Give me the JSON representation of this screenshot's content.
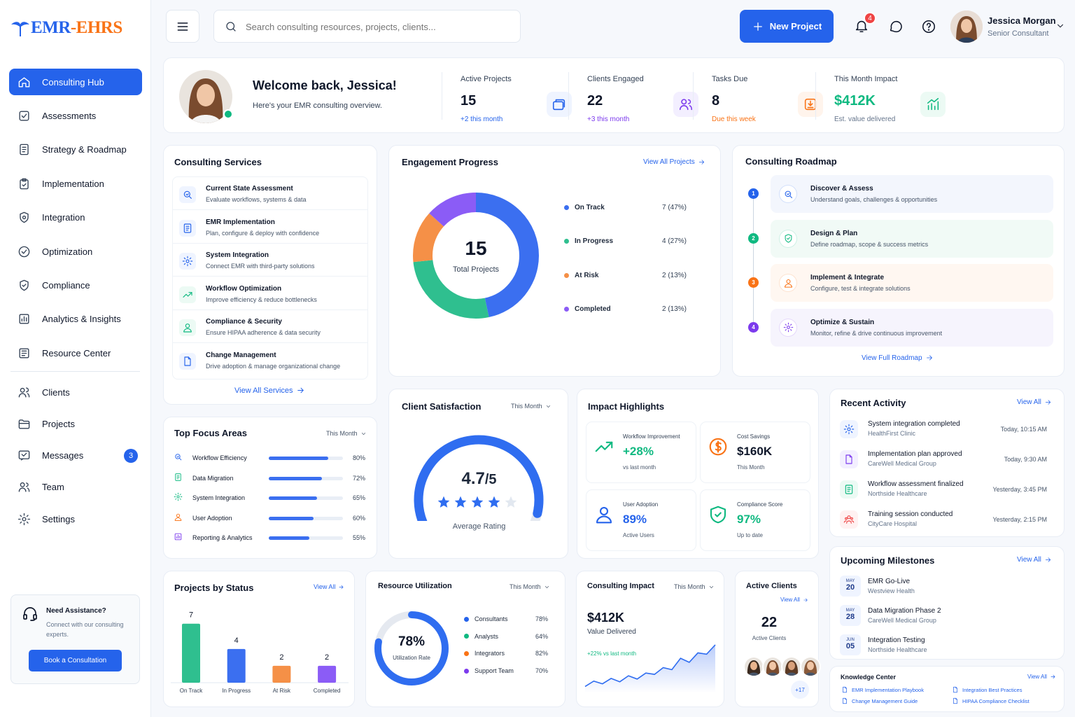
{
  "brand": {
    "logo_text_main": "EMR",
    "logo_text_dash": "-",
    "logo_text_end": "EHRS"
  },
  "search": {
    "placeholder": "Search consulting resources, projects, clients..."
  },
  "header": {
    "new_project": "New Project",
    "notifications": "4",
    "user_name": "Jessica Morgan",
    "user_role": "Senior Consultant"
  },
  "sidebar": {
    "items": [
      {
        "label": "Consulting Hub",
        "icon": "home-icon"
      },
      {
        "label": "Assessments",
        "icon": "checklist-icon"
      },
      {
        "label": "Strategy & Roadmap",
        "icon": "document-icon"
      },
      {
        "label": "Implementation",
        "icon": "clipboard-icon"
      },
      {
        "label": "Integration",
        "icon": "shield-gear-icon"
      },
      {
        "label": "Optimization",
        "icon": "check-circle-icon"
      },
      {
        "label": "Compliance",
        "icon": "shield-check-icon"
      },
      {
        "label": "Analytics & Insights",
        "icon": "chart-icon"
      },
      {
        "label": "Resource Center",
        "icon": "book-icon"
      }
    ],
    "items2": [
      {
        "label": "Clients",
        "icon": "users-icon"
      },
      {
        "label": "Projects",
        "icon": "folder-icon"
      },
      {
        "label": "Messages",
        "icon": "message-icon",
        "badge": "3"
      },
      {
        "label": "Team",
        "icon": "team-icon"
      },
      {
        "label": "Settings",
        "icon": "gear-icon"
      }
    ],
    "help": {
      "title": "Need Assistance?",
      "text1": "Connect with our consulting",
      "text2": "experts.",
      "button": "Book a Consultation"
    }
  },
  "welcome": {
    "title": "Welcome back, Jessica!",
    "subtitle": "Here's your EMR consulting overview."
  },
  "stats": [
    {
      "label": "Active Projects",
      "value": "15",
      "sub": "+2 this month",
      "color": "#2563eb"
    },
    {
      "label": "Clients Engaged",
      "value": "22",
      "sub": "+3 this month",
      "color": "#7c3aed"
    },
    {
      "label": "Tasks Due",
      "value": "8",
      "sub": "Due this week",
      "color": "#f97316"
    },
    {
      "label": "This Month Impact",
      "value": "$412K",
      "sub": "Est. value delivered",
      "color": "#10b981"
    }
  ],
  "services": {
    "title": "Consulting Services",
    "link": "View All Services",
    "items": [
      {
        "title": "Current State Assessment",
        "desc": "Evaluate workflows, systems & data"
      },
      {
        "title": "EMR Implementation",
        "desc": "Plan, configure & deploy with confidence"
      },
      {
        "title": "System Integration",
        "desc": "Connect EMR with third-party solutions"
      },
      {
        "title": "Workflow Optimization",
        "desc": "Improve efficiency & reduce bottlenecks"
      },
      {
        "title": "Compliance & Security",
        "desc": "Ensure HIPAA adherence & data security"
      },
      {
        "title": "Change Management",
        "desc": "Drive adoption & manage organizational change"
      }
    ]
  },
  "engagement": {
    "title": "Engagement Progress",
    "link": "View All Projects",
    "center_value": "15",
    "center_label": "Total Projects"
  },
  "chart_data": [
    {
      "type": "pie",
      "title": "Engagement Progress",
      "categories": [
        "On Track",
        "In Progress",
        "At Risk",
        "Completed"
      ],
      "values": [
        7,
        4,
        2,
        2
      ],
      "labels": [
        "7 (47%)",
        "4 (27%)",
        "2 (13%)",
        "2 (13%)"
      ],
      "colors": [
        "#3b6ff0",
        "#2fbf8f",
        "#f59047",
        "#8b5cf6"
      ]
    },
    {
      "type": "bar",
      "title": "Projects by Status",
      "categories": [
        "On Track",
        "In Progress",
        "At Risk",
        "Completed"
      ],
      "values": [
        7,
        4,
        2,
        2
      ],
      "colors": [
        "#2fbf8f",
        "#3b6ff0",
        "#f59047",
        "#8b5cf6"
      ],
      "ylim": [
        0,
        8
      ]
    },
    {
      "type": "line",
      "title": "Consulting Impact",
      "values": [
        10,
        18,
        14,
        22,
        17,
        26,
        21,
        30,
        28,
        38,
        35,
        52,
        46,
        60,
        58,
        72
      ]
    }
  ],
  "roadmap": {
    "title": "Consulting Roadmap",
    "link": "View Full Roadmap",
    "steps": [
      {
        "n": "1",
        "title": "Discover & Assess",
        "desc": "Understand goals, challenges & opportunities",
        "color": "#2563eb",
        "bg": "#f3f6fd"
      },
      {
        "n": "2",
        "title": "Design & Plan",
        "desc": "Define roadmap, scope & success metrics",
        "color": "#10b981",
        "bg": "#f1faf6"
      },
      {
        "n": "3",
        "title": "Implement & Integrate",
        "desc": "Configure, test & integrate solutions",
        "color": "#f97316",
        "bg": "#fff7f1"
      },
      {
        "n": "4",
        "title": "Optimize & Sustain",
        "desc": "Monitor, refine & drive continuous improvement",
        "color": "#7c3aed",
        "bg": "#f6f4fd"
      }
    ]
  },
  "focus": {
    "title": "Top Focus Areas",
    "period": "This Month",
    "items": [
      {
        "label": "Workflow Efficiency",
        "pct": "80%",
        "value": 80,
        "color": "#2563eb"
      },
      {
        "label": "Data Migration",
        "pct": "72%",
        "value": 72,
        "color": "#10b981"
      },
      {
        "label": "System Integration",
        "pct": "65%",
        "value": 65,
        "color": "#10b981"
      },
      {
        "label": "User Adoption",
        "pct": "60%",
        "value": 60,
        "color": "#f97316"
      },
      {
        "label": "Reporting & Analytics",
        "pct": "55%",
        "value": 55,
        "color": "#7c3aed"
      }
    ]
  },
  "satisfaction": {
    "title": "Client Satisfaction",
    "period": "This Month",
    "value": "4.7",
    "denom": "/5",
    "label": "Average Rating",
    "rating": 4.7,
    "max": 5
  },
  "impact": {
    "title": "Impact Highlights",
    "items": [
      {
        "label": "Workflow Improvement",
        "value": "+28%",
        "sub": "vs last month",
        "color": "#10b981"
      },
      {
        "label": "Cost Savings",
        "value": "$160K",
        "sub": "This Month",
        "color": "#0f172a"
      },
      {
        "label": "User Adoption",
        "value": "89%",
        "sub": "Active Users",
        "color": "#2563eb"
      },
      {
        "label": "Compliance Score",
        "value": "97%",
        "sub": "Up to date",
        "color": "#10b981"
      }
    ]
  },
  "activity": {
    "title": "Recent Activity",
    "link": "View All",
    "items": [
      {
        "title": "System integration completed",
        "sub": "HealthFirst Clinic",
        "time": "Today, 10:15 AM",
        "color": "#2563eb",
        "bg": "#eff4ff"
      },
      {
        "title": "Implementation plan approved",
        "sub": "CareWell Medical Group",
        "time": "Today, 9:30 AM",
        "color": "#7c3aed",
        "bg": "#f3efff"
      },
      {
        "title": "Workflow assessment finalized",
        "sub": "Northside Healthcare",
        "time": "Yesterday, 3:45 PM",
        "color": "#10b981",
        "bg": "#ecfaf4"
      },
      {
        "title": "Training session conducted",
        "sub": "CityCare Hospital",
        "time": "Yesterday, 2:15 PM",
        "color": "#ef4444",
        "bg": "#fff1f1"
      }
    ]
  },
  "milestones": {
    "title": "Upcoming Milestones",
    "link": "View All",
    "items": [
      {
        "month": "MAY",
        "day": "20",
        "title": "EMR Go-Live",
        "sub": "Westview Health"
      },
      {
        "month": "MAY",
        "day": "28",
        "title": "Data Migration Phase 2",
        "sub": "CareWell Medical Group"
      },
      {
        "month": "JUN",
        "day": "05",
        "title": "Integration Testing",
        "sub": "Northside Healthcare"
      }
    ]
  },
  "knowledge": {
    "title": "Knowledge Center",
    "link": "View All",
    "items": [
      "EMR Implementation Playbook",
      "Integration Best Practices",
      "Change Management Guide",
      "HIPAA Compliance Checklist"
    ]
  },
  "projects_status": {
    "title": "Projects by Status",
    "link": "View All",
    "values": [
      "7",
      "4",
      "2",
      "2"
    ],
    "labels": [
      "On Track",
      "In Progress",
      "At Risk",
      "Completed"
    ]
  },
  "utilization": {
    "title": "Resource Utilization",
    "period": "This Month",
    "value": "78%",
    "label": "Utilization Rate",
    "percent": 78,
    "items": [
      {
        "label": "Consultants",
        "pct": "78%",
        "color": "#2563eb"
      },
      {
        "label": "Analysts",
        "pct": "64%",
        "color": "#10b981"
      },
      {
        "label": "Integrators",
        "pct": "82%",
        "color": "#f97316"
      },
      {
        "label": "Support Team",
        "pct": "70%",
        "color": "#7c3aed"
      }
    ]
  },
  "consulting_impact": {
    "title": "Consulting Impact",
    "period": "This Month",
    "value": "$412K",
    "label": "Value Delivered",
    "change": "+22% vs last month"
  },
  "active_clients": {
    "title": "Active Clients",
    "link": "View All",
    "value": "22",
    "label": "Active Clients",
    "more": "+17"
  }
}
